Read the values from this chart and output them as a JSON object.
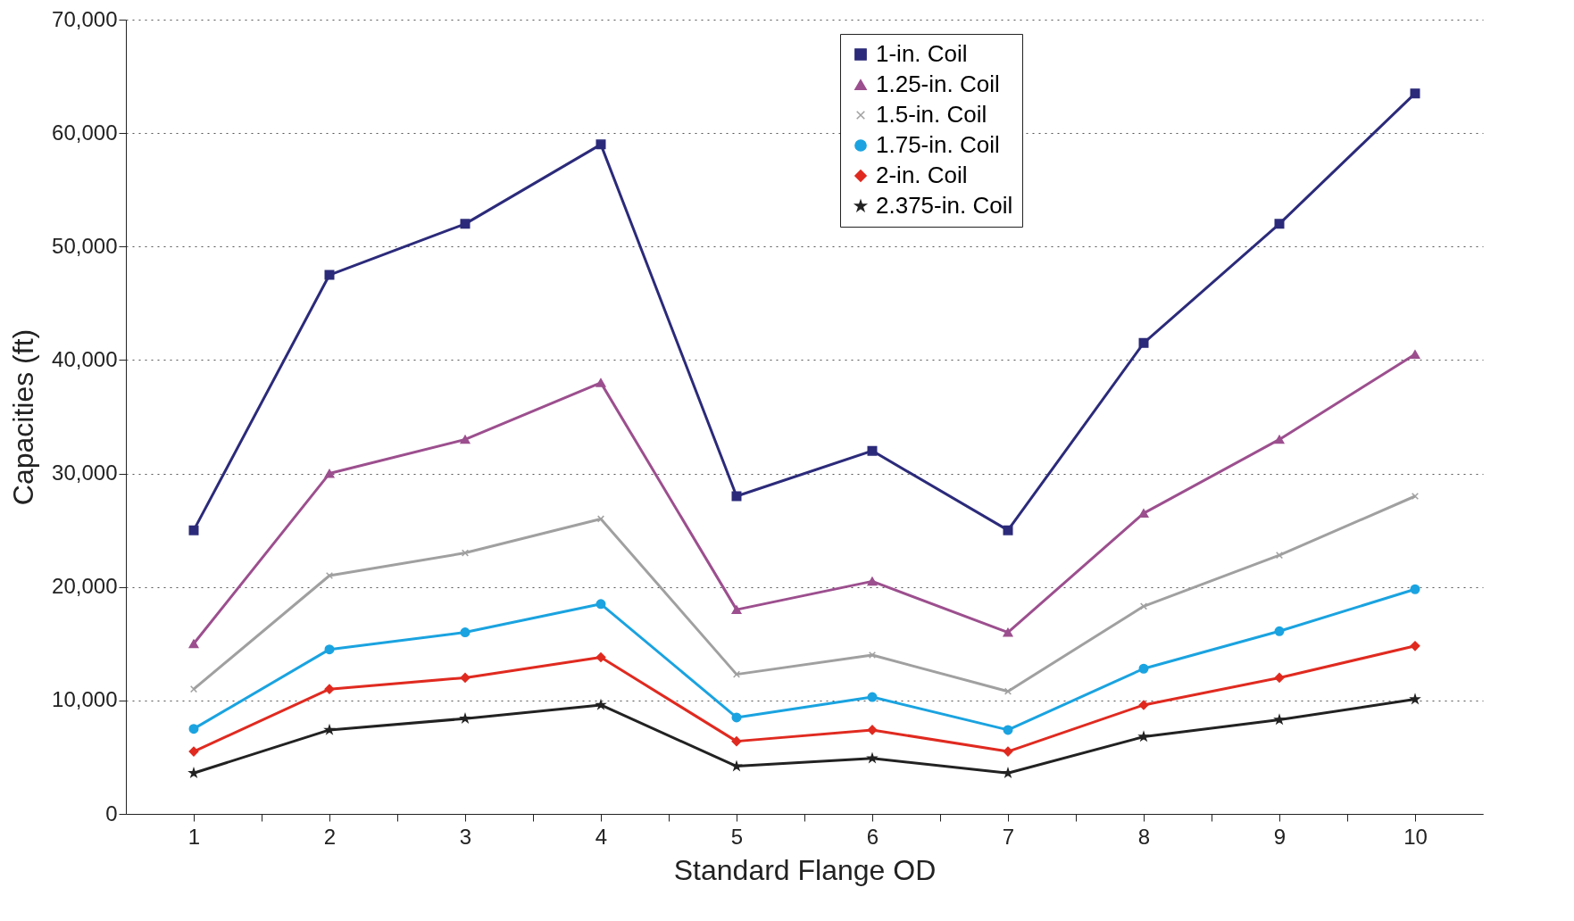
{
  "chart_data": {
    "type": "line",
    "xlabel": "Standard Flange OD",
    "ylabel": "Capacities (ft)",
    "x": [
      1,
      2,
      3,
      4,
      5,
      6,
      7,
      8,
      9,
      10
    ],
    "xlim": [
      0.5,
      10.5
    ],
    "xticks": [
      1,
      {
        "value": 1.5,
        "label": null
      },
      2,
      {
        "value": 2.5,
        "label": null
      },
      3,
      {
        "value": 3.5,
        "label": null
      },
      4,
      {
        "value": 4.5,
        "label": null
      },
      5,
      {
        "value": 5.5,
        "label": null
      },
      6,
      {
        "value": 6.5,
        "label": null
      },
      7,
      {
        "value": 7.5,
        "label": null
      },
      8,
      {
        "value": 8.5,
        "label": null
      },
      9,
      {
        "value": 9.5,
        "label": null
      },
      10
    ],
    "ylim": [
      0,
      70000
    ],
    "yticks": [
      0,
      {
        "value": 10000,
        "label": "10,000"
      },
      {
        "value": 20000,
        "label": "20,000"
      },
      {
        "value": 30000,
        "label": "30,000"
      },
      {
        "value": 40000,
        "label": "40,000"
      },
      {
        "value": 50000,
        "label": "50,000"
      },
      {
        "value": 60000,
        "label": "60,000"
      },
      {
        "value": 70000,
        "label": "70,000"
      }
    ],
    "grid": "y",
    "legend": "top right",
    "series": [
      {
        "name": "1-in. Coil",
        "color": "#2b2a7a",
        "marker": "square",
        "values": [
          25000,
          47500,
          52000,
          59000,
          28000,
          32000,
          25000,
          41500,
          52000,
          63500
        ]
      },
      {
        "name": "1.25-in. Coil",
        "color": "#9c4f8e",
        "marker": "triangle",
        "values": [
          15000,
          30000,
          33000,
          38000,
          18000,
          20500,
          16000,
          26500,
          33000,
          40500
        ]
      },
      {
        "name": "1.5-in. Coil",
        "color": "#a0a0a0",
        "marker": "cross",
        "values": [
          11000,
          21000,
          23000,
          26000,
          12300,
          14000,
          10800,
          18300,
          22800,
          28000
        ]
      },
      {
        "name": "1.75-in. Coil",
        "color": "#1aa3e0",
        "marker": "circle",
        "values": [
          7500,
          14500,
          16000,
          18500,
          8500,
          10300,
          7400,
          12800,
          16100,
          19800
        ]
      },
      {
        "name": "2-in. Coil",
        "color": "#e02a20",
        "marker": "diamond",
        "values": [
          5500,
          11000,
          12000,
          13800,
          6400,
          7400,
          5500,
          9600,
          12000,
          14800
        ]
      },
      {
        "name": "2.375-in. Coil",
        "color": "#222222",
        "marker": "star",
        "values": [
          3600,
          7400,
          8400,
          9600,
          4200,
          4900,
          3600,
          6800,
          8300,
          10100
        ]
      }
    ]
  }
}
